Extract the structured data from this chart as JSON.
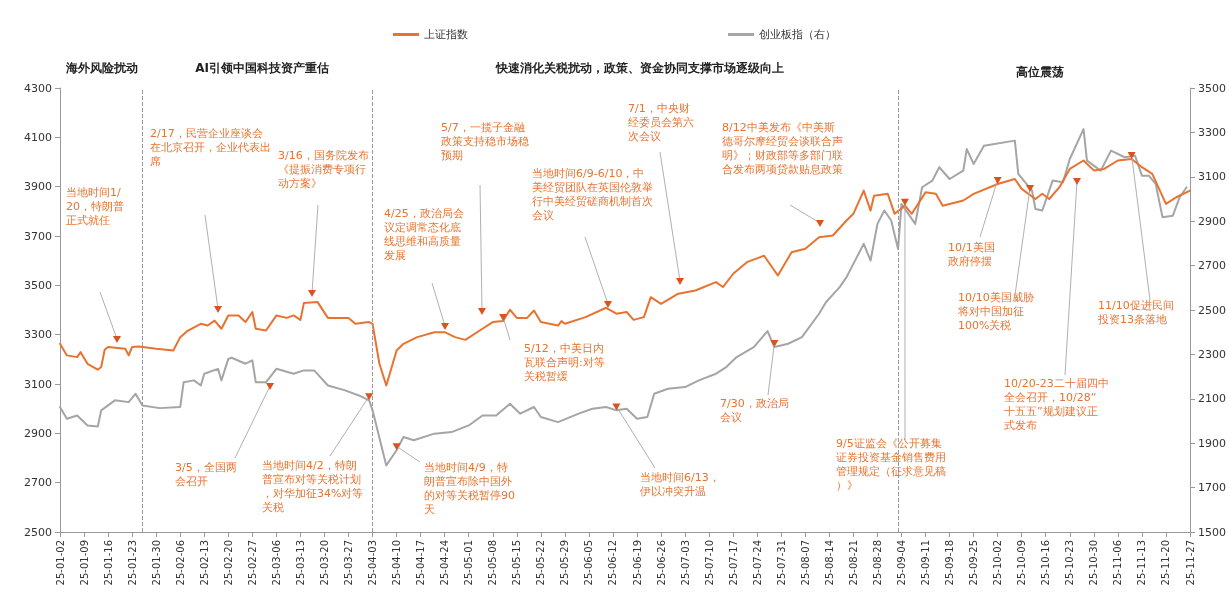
{
  "chart_data": {
    "type": "line",
    "legend": "top",
    "marker": "none",
    "line_style": "solid",
    "grid": false,
    "xlim": [
      "--01-02",
      "--11-27"
    ],
    "xticks": [
      {
        "value": "--01-02",
        "label": "25-01-02"
      },
      {
        "value": "--01-09",
        "label": "25-01-09"
      },
      {
        "value": "--01-16",
        "label": "25-01-16"
      },
      {
        "value": "--01-23",
        "label": "25-01-23"
      },
      {
        "value": "--01-30",
        "label": "25-01-30"
      },
      {
        "value": "--02-06",
        "label": "25-02-06"
      },
      {
        "value": "--02-13",
        "label": "25-02-13"
      },
      {
        "value": "--02-20",
        "label": "25-02-20"
      },
      {
        "value": "--02-27",
        "label": "25-02-27"
      },
      {
        "value": "--03-06",
        "label": "25-03-06"
      },
      {
        "value": "--03-13",
        "label": "25-03-13"
      },
      {
        "value": "--03-20",
        "label": "25-03-20"
      },
      {
        "value": "--03-27",
        "label": "25-03-27"
      },
      {
        "value": "--04-03",
        "label": "25-04-03"
      },
      {
        "value": "--04-10",
        "label": "25-04-10"
      },
      {
        "value": "--04-17",
        "label": "25-04-17"
      },
      {
        "value": "--04-24",
        "label": "25-04-24"
      },
      {
        "value": "--05-01",
        "label": "25-05-01"
      },
      {
        "value": "--05-08",
        "label": "25-05-08"
      },
      {
        "value": "--05-15",
        "label": "25-05-15"
      },
      {
        "value": "--05-22",
        "label": "25-05-22"
      },
      {
        "value": "--05-29",
        "label": "25-05-29"
      },
      {
        "value": "--06-05",
        "label": "25-06-05"
      },
      {
        "value": "--06-12",
        "label": "25-06-12"
      },
      {
        "value": "--06-19",
        "label": "25-06-19"
      },
      {
        "value": "--06-26",
        "label": "25-06-26"
      },
      {
        "value": "--07-03",
        "label": "25-07-03"
      },
      {
        "value": "--07-10",
        "label": "25-07-10"
      },
      {
        "value": "--07-17",
        "label": "25-07-17"
      },
      {
        "value": "--07-24",
        "label": "25-07-24"
      },
      {
        "value": "--07-31",
        "label": "25-07-31"
      },
      {
        "value": "--08-07",
        "label": "25-08-07"
      },
      {
        "value": "--08-14",
        "label": "25-08-14"
      },
      {
        "value": "--08-21",
        "label": "25-08-21"
      },
      {
        "value": "--08-28",
        "label": "25-08-28"
      },
      {
        "value": "--09-04",
        "label": "25-09-04"
      },
      {
        "value": "--09-11",
        "label": "25-09-11"
      },
      {
        "value": "--09-18",
        "label": "25-09-18"
      },
      {
        "value": "--09-25",
        "label": "25-09-25"
      },
      {
        "value": "--10-02",
        "label": "25-10-02"
      },
      {
        "value": "--10-09",
        "label": "25-10-09"
      },
      {
        "value": "--10-16",
        "label": "25-10-16"
      },
      {
        "value": "--10-23",
        "label": "25-10-23"
      },
      {
        "value": "--10-30",
        "label": "25-10-30"
      },
      {
        "value": "--11-06",
        "label": "25-11-06"
      },
      {
        "value": "--11-13",
        "label": "25-11-13"
      },
      {
        "value": "--11-20",
        "label": "25-11-20"
      },
      {
        "value": "--11-27",
        "label": "25-11-27"
      }
    ],
    "ylim": [
      2500,
      4300
    ],
    "yticks": [
      2500,
      2700,
      2900,
      3100,
      3300,
      3500,
      3700,
      3900,
      4100,
      4300
    ],
    "y2lim": [
      1500,
      3500
    ],
    "y2ticks": [
      1500,
      1700,
      1900,
      2100,
      2300,
      2500,
      2700,
      2900,
      3100,
      3300,
      3500
    ],
    "series": [
      {
        "name": "上证指数",
        "color": "#e87330",
        "x": [
          "--01-02",
          "--01-04",
          "--01-07",
          "--01-08",
          "--01-10",
          "--01-13",
          "--01-14",
          "--01-15",
          "--01-16",
          "--01-21",
          "--01-22",
          "--01-23",
          "--01-25",
          "--01-30",
          "--02-04",
          "--02-06",
          "--02-08",
          "--02-12",
          "--02-14",
          "--02-16",
          "--02-18",
          "--02-20",
          "--02-23",
          "--02-25",
          "--02-27",
          "--02-28",
          "--03-03",
          "--03-06",
          "--03-09",
          "--03-11",
          "--03-13",
          "--03-14",
          "--03-18",
          "--03-21",
          "--03-27",
          "--03-29",
          "--04-02",
          "--04-03",
          "--04-05",
          "--04-07",
          "--04-10",
          "--04-12",
          "--04-16",
          "--04-21",
          "--04-24",
          "--04-27",
          "--04-30",
          "--05-05",
          "--05-08",
          "--05-11",
          "--05-13",
          "--05-15",
          "--05-18",
          "--05-20",
          "--05-22",
          "--05-27",
          "--05-28",
          "--05-29",
          "--06-04",
          "--06-10",
          "--06-13",
          "--06-16",
          "--06-18",
          "--06-21",
          "--06-23",
          "--06-26",
          "--07-01",
          "--07-06",
          "--07-12",
          "--07-14",
          "--07-17",
          "--07-21",
          "--07-26",
          "--07-30",
          "--08-03",
          "--08-07",
          "--08-11",
          "--08-15",
          "--08-19",
          "--08-21",
          "--08-24",
          "--08-26",
          "--08-27",
          "--08-31",
          "--09-02",
          "--09-05",
          "--09-07",
          "--09-11",
          "--09-14",
          "--09-16",
          "--09-22",
          "--09-25",
          "--10-02",
          "--10-07",
          "--10-09",
          "--10-13",
          "--10-15",
          "--10-17",
          "--10-20",
          "--10-23",
          "--10-27",
          "--10-30",
          "--11-02",
          "--11-06",
          "--11-10",
          "--11-13",
          "--11-16",
          "--11-20",
          "--11-23",
          "--11-27"
        ],
        "values": [
          3263,
          3216,
          3209,
          3229,
          3182,
          3158,
          3169,
          3239,
          3250,
          3243,
          3216,
          3250,
          3252,
          3243,
          3236,
          3290,
          3314,
          3344,
          3337,
          3357,
          3324,
          3378,
          3378,
          3351,
          3392,
          3324,
          3317,
          3378,
          3368,
          3378,
          3360,
          3428,
          3432,
          3368,
          3368,
          3344,
          3351,
          3344,
          3182,
          3094,
          3236,
          3263,
          3290,
          3310,
          3310,
          3290,
          3279,
          3324,
          3351,
          3355,
          3401,
          3368,
          3368,
          3398,
          3351,
          3337,
          3355,
          3344,
          3371,
          3409,
          3385,
          3392,
          3360,
          3371,
          3452,
          3425,
          3466,
          3479,
          3513,
          3493,
          3547,
          3594,
          3620,
          3540,
          3634,
          3648,
          3695,
          3702,
          3763,
          3790,
          3884,
          3803,
          3863,
          3871,
          3790,
          3823,
          3790,
          3877,
          3871,
          3823,
          3844,
          3871,
          3911,
          3931,
          3891,
          3850,
          3871,
          3850,
          3898,
          3972,
          4006,
          3966,
          3972,
          4006,
          4012,
          3979,
          3952,
          3830,
          3857,
          3884
        ]
      },
      {
        "name": "创业板指（右）",
        "color": "#a5a5a5",
        "axis": "y2",
        "x": [
          "--01-02",
          "--01-04",
          "--01-07",
          "--01-10",
          "--01-13",
          "--01-14",
          "--01-18",
          "--01-22",
          "--01-24",
          "--01-26",
          "--01-31",
          "--02-06",
          "--02-07",
          "--02-10",
          "--02-12",
          "--02-13",
          "--02-17",
          "--02-18",
          "--02-20",
          "--02-21",
          "--02-25",
          "--02-27",
          "--02-28",
          "--03-03",
          "--03-06",
          "--03-11",
          "--03-14",
          "--03-17",
          "--03-21",
          "--03-26",
          "--03-30",
          "--04-02",
          "--04-03",
          "--04-07",
          "--04-10",
          "--04-12",
          "--04-15",
          "--04-21",
          "--04-26",
          "--05-01",
          "--05-05",
          "--05-09",
          "--05-13",
          "--05-16",
          "--05-20",
          "--05-22",
          "--05-27",
          "--06-02",
          "--06-06",
          "--06-10",
          "--06-13",
          "--06-16",
          "--06-19",
          "--06-22",
          "--06-24",
          "--06-28",
          "--07-03",
          "--07-07",
          "--07-12",
          "--07-15",
          "--07-18",
          "--07-23",
          "--07-27",
          "--07-29",
          "--08-02",
          "--08-06",
          "--08-11",
          "--08-13",
          "--08-17",
          "--08-19",
          "--08-22",
          "--08-24",
          "--08-26",
          "--08-28",
          "--08-30",
          "--09-01",
          "--09-03",
          "--09-04",
          "--09-08",
          "--09-10",
          "--09-13",
          "--09-15",
          "--09-18",
          "--09-22",
          "--09-23",
          "--09-25",
          "--09-28",
          "--10-07",
          "--10-08",
          "--10-12",
          "--10-13",
          "--10-15",
          "--10-18",
          "--10-21",
          "--10-23",
          "--10-27",
          "--10-28",
          "--11-01",
          "--11-04",
          "--11-08",
          "--11-11",
          "--11-13",
          "--11-15",
          "--11-17",
          "--11-19",
          "--11-22",
          "--11-24",
          "--11-26"
        ],
        "values": [
          2063,
          2010,
          2025,
          1980,
          1975,
          2048,
          2093,
          2085,
          2123,
          2070,
          2058,
          2063,
          2175,
          2183,
          2160,
          2213,
          2235,
          2183,
          2280,
          2285,
          2258,
          2273,
          2175,
          2175,
          2235,
          2213,
          2228,
          2228,
          2160,
          2138,
          2115,
          2093,
          2048,
          1800,
          1868,
          1928,
          1913,
          1943,
          1950,
          1980,
          2025,
          2025,
          2078,
          2033,
          2063,
          2018,
          1995,
          2033,
          2055,
          2063,
          2048,
          2055,
          2010,
          2018,
          2123,
          2145,
          2153,
          2183,
          2213,
          2243,
          2288,
          2333,
          2405,
          2333,
          2348,
          2378,
          2483,
          2535,
          2603,
          2648,
          2738,
          2798,
          2723,
          2888,
          2948,
          2903,
          2775,
          2978,
          2888,
          3053,
          3083,
          3143,
          3090,
          3128,
          3225,
          3158,
          3240,
          3263,
          3113,
          3038,
          2955,
          2948,
          3083,
          3075,
          3180,
          3315,
          3173,
          3128,
          3218,
          3188,
          3195,
          3105,
          3105,
          3068,
          2918,
          2925,
          3008,
          3053
        ]
      }
    ],
    "ref_lines": [
      {
        "axis": "x",
        "value": "--01-26",
        "line_style": "dashed"
      },
      {
        "axis": "x",
        "value": "--04-03",
        "line_style": "dashed"
      },
      {
        "axis": "x",
        "value": "--09-03",
        "line_style": "dashed"
      }
    ],
    "annotations": [
      "当地时间1/20，特朗普正式就任",
      "2/17，民营企业座谈会在北京召开，企业代表出席",
      "3/16，国务院发布《提振消费专项行动方案》",
      "3/5，全国两会召开",
      {
        "text": "当地时间4/2，特朗普宣布对等关税计划，对华加征34%对等关税",
        "x": "--04-02",
        "y": 3034
      },
      "4/25，政治局会议定调常态化底线思维和高质量发展",
      "5/7，一揽子金融政策支持稳市场稳预期",
      {
        "text": "5/12，中美日内瓦联合声明:对等关税暂缓",
        "x": "--05-11",
        "y": 3355
      },
      "当地时间6/9-6/10，中美经贸团队在英国伦敦举行中美经贸磋商机制首次会议",
      "7/1，中央财经委员会第六次会议",
      "8/12中美发布《中美斯德哥尔摩经贸会谈联合声明》；财政部等多部门联合发布两项贷款贴息政策",
      {
        "text": "当地时间4/9，特朗普宣布除中国外的对等关税暂停90天",
        "x": "--04-10",
        "y": 2831
      },
      {
        "text": "当地时间6/13，伊以冲突升温",
        "x": "--06-13",
        "y": 2993
      },
      {
        "text": "7/30，政治局会议",
        "x": "--07-29",
        "y": 3250
      },
      {
        "text": "9/5证监会《公开募集证券投资基金销售费用管理规定（征求意见稿）》",
        "x": "--09-05",
        "y": 3823
      },
      {
        "text": "10/1美国政府停摆",
        "x": "--10-02",
        "y": 3911
      },
      "10/10美国威胁将对中国加征100%关税",
      "10/20-23二十届四中全会召开，10/28“十五五”规划建议正式发布",
      {
        "text": "11/10促进民间投资13条落地",
        "x": "--11-10",
        "y": 4012
      },
      "海外风险扰动",
      "AI引领中国科技资产重估",
      "快速消化关税扰动，政策、资金协同支撑市场逐级向上",
      "高位震荡"
    ]
  }
}
